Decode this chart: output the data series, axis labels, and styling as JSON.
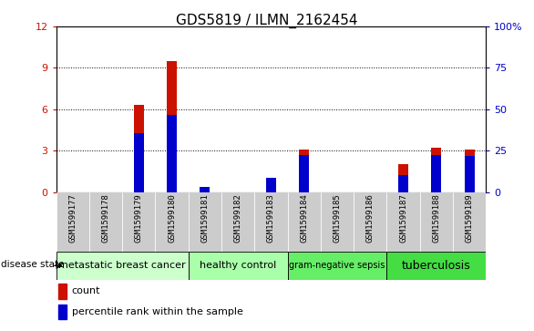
{
  "title": "GDS5819 / ILMN_2162454",
  "samples": [
    "GSM1599177",
    "GSM1599178",
    "GSM1599179",
    "GSM1599180",
    "GSM1599181",
    "GSM1599182",
    "GSM1599183",
    "GSM1599184",
    "GSM1599185",
    "GSM1599186",
    "GSM1599187",
    "GSM1599188",
    "GSM1599189"
  ],
  "count_values": [
    0,
    0,
    6.3,
    9.5,
    0.05,
    0,
    0.3,
    3.1,
    0,
    0,
    2.0,
    3.2,
    3.1
  ],
  "percentile_values": [
    0,
    0,
    35.8,
    46.7,
    2.9,
    0,
    8.3,
    22.5,
    0,
    0,
    10.0,
    22.5,
    21.7
  ],
  "count_color": "#cc1100",
  "percentile_color": "#0000cc",
  "ylim_left": [
    0,
    12
  ],
  "ylim_right": [
    0,
    100
  ],
  "yticks_left": [
    0,
    3,
    6,
    9,
    12
  ],
  "ytick_labels_left": [
    "0",
    "3",
    "6",
    "9",
    "12"
  ],
  "yticks_right": [
    0,
    25,
    50,
    75,
    100
  ],
  "ytick_labels_right": [
    "0",
    "25",
    "50",
    "75",
    "100%"
  ],
  "bar_width": 0.3,
  "groups": [
    {
      "label": "metastatic breast cancer",
      "indices": [
        0,
        1,
        2,
        3
      ],
      "color": "#ccffcc",
      "fontsize": 8
    },
    {
      "label": "healthy control",
      "indices": [
        4,
        5,
        6
      ],
      "color": "#aaffaa",
      "fontsize": 8
    },
    {
      "label": "gram-negative sepsis",
      "indices": [
        7,
        8,
        9
      ],
      "color": "#66ee66",
      "fontsize": 7
    },
    {
      "label": "tuberculosis",
      "indices": [
        10,
        11,
        12
      ],
      "color": "#44dd44",
      "fontsize": 9
    }
  ],
  "disease_state_label": "disease state",
  "legend_count_label": "count",
  "legend_percentile_label": "percentile rank within the sample",
  "background_color": "#ffffff",
  "tick_bg_color": "#cccccc",
  "plot_bg_color": "#ffffff",
  "dotted_grid_color": "#000000",
  "title_fontsize": 11,
  "tick_fontsize": 6.5
}
